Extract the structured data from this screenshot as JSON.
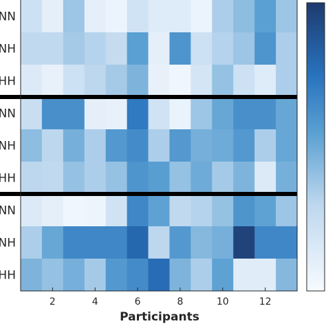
{
  "chart_data": {
    "type": "heatmap",
    "title": "",
    "xlabel": "Participants",
    "ylabel": "",
    "xlim": [
      0.5,
      13.5
    ],
    "x_ticks": [
      2,
      4,
      6,
      8,
      10,
      12
    ],
    "row_labels": [
      "NN",
      "NH",
      "HH",
      "NN",
      "NH",
      "HH",
      "NN",
      "NH",
      "HH"
    ],
    "row_groups": [
      [
        0,
        2
      ],
      [
        3,
        5
      ],
      [
        6,
        8
      ]
    ],
    "group_separator_color": "#000000",
    "colorscale": {
      "low": "#f7fbff",
      "high": "#1e3a6e",
      "range": [
        0,
        1
      ]
    },
    "values": [
      [
        0.22,
        0.1,
        0.38,
        0.1,
        0.06,
        0.2,
        0.13,
        0.13,
        0.06,
        0.34,
        0.42,
        0.55,
        0.38
      ],
      [
        0.28,
        0.28,
        0.36,
        0.32,
        0.26,
        0.55,
        0.1,
        0.6,
        0.22,
        0.32,
        0.38,
        0.6,
        0.34
      ],
      [
        0.14,
        0.08,
        0.22,
        0.3,
        0.36,
        0.46,
        0.08,
        0.04,
        0.18,
        0.4,
        0.22,
        0.13,
        0.34
      ],
      [
        0.24,
        0.62,
        0.62,
        0.1,
        0.08,
        0.72,
        0.2,
        0.07,
        0.38,
        0.52,
        0.62,
        0.62,
        0.52
      ],
      [
        0.42,
        0.3,
        0.48,
        0.34,
        0.58,
        0.64,
        0.34,
        0.58,
        0.48,
        0.5,
        0.58,
        0.34,
        0.52
      ],
      [
        0.3,
        0.28,
        0.4,
        0.34,
        0.4,
        0.6,
        0.56,
        0.4,
        0.5,
        0.36,
        0.46,
        0.14,
        0.48
      ],
      [
        0.14,
        0.1,
        0.04,
        0.05,
        0.2,
        0.66,
        0.54,
        0.28,
        0.32,
        0.4,
        0.6,
        0.54,
        0.38
      ],
      [
        0.34,
        0.52,
        0.66,
        0.66,
        0.66,
        0.8,
        0.3,
        0.58,
        0.44,
        0.48,
        0.96,
        0.66,
        0.66
      ],
      [
        0.46,
        0.4,
        0.48,
        0.36,
        0.58,
        0.64,
        0.78,
        0.46,
        0.34,
        0.54,
        0.12,
        0.12,
        0.44
      ]
    ]
  }
}
